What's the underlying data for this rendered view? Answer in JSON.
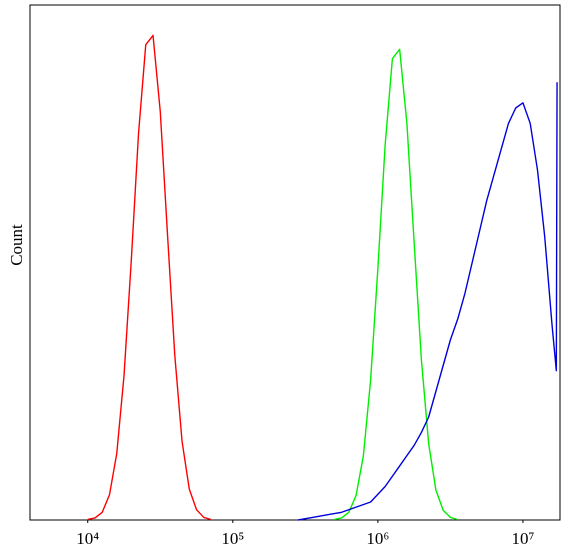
{
  "chart_data": {
    "type": "line",
    "y_label": "Count",
    "xscale": "log",
    "xlim": [
      4000,
      18000000
    ],
    "ylim": [
      0,
      100
    ],
    "xticks": [
      {
        "value": 10000,
        "label": "10⁴"
      },
      {
        "value": 100000,
        "label": "10⁵"
      },
      {
        "value": 1000000,
        "label": "10⁶"
      },
      {
        "value": 10000000,
        "label": "10⁷"
      }
    ],
    "series": [
      {
        "color": "#ff0000",
        "x": [
          10000,
          11220,
          12589,
          14125,
          15849,
          17783,
          19953,
          22387,
          25119,
          28184,
          31623,
          35481,
          39811,
          44668,
          50119,
          56234,
          63096,
          70795
        ],
        "values": [
          0.1,
          0.4,
          1.5,
          4.9,
          12.9,
          28,
          50.3,
          75,
          92.3,
          94.1,
          79.3,
          55.4,
          32,
          15.3,
          6.0,
          2.0,
          0.5,
          0.1
        ]
      },
      {
        "color": "#00ee00",
        "x": [
          501187,
          562341,
          630957,
          707946,
          794328,
          891251,
          1000000,
          1122018,
          1258925,
          1412538,
          1584893,
          1778279,
          1995262,
          2238721,
          2511886,
          2818383,
          3162278,
          3548134
        ],
        "values": [
          0.1,
          0.4,
          1.5,
          4.8,
          12.5,
          27.2,
          48.9,
          72.8,
          89.6,
          91.4,
          77.0,
          53.8,
          31.1,
          14.8,
          5.8,
          1.9,
          0.5,
          0.1
        ]
      },
      {
        "color": "#0000dd",
        "x": [
          281838,
          354813,
          446684,
          562341,
          707946,
          891251,
          1000000,
          1122018,
          1258925,
          1412538,
          1584893,
          1778279,
          1995262,
          2238721,
          2511886,
          2818383,
          3162278,
          3548134,
          3981072,
          4466836,
          5011872,
          5623413,
          6309573,
          7079458,
          7943282,
          8912509,
          10000000,
          11220185,
          12589254,
          14125375,
          15848932,
          16982437,
          17180000
        ],
        "values": [
          0,
          0.5,
          1,
          1.5,
          2.5,
          3.5,
          5,
          6.5,
          8.5,
          10.5,
          12.5,
          14.5,
          17,
          20,
          25,
          30,
          35,
          39,
          44,
          50,
          56,
          62,
          67,
          72,
          77,
          80,
          81,
          77,
          68,
          55,
          38,
          29,
          85
        ]
      }
    ]
  }
}
